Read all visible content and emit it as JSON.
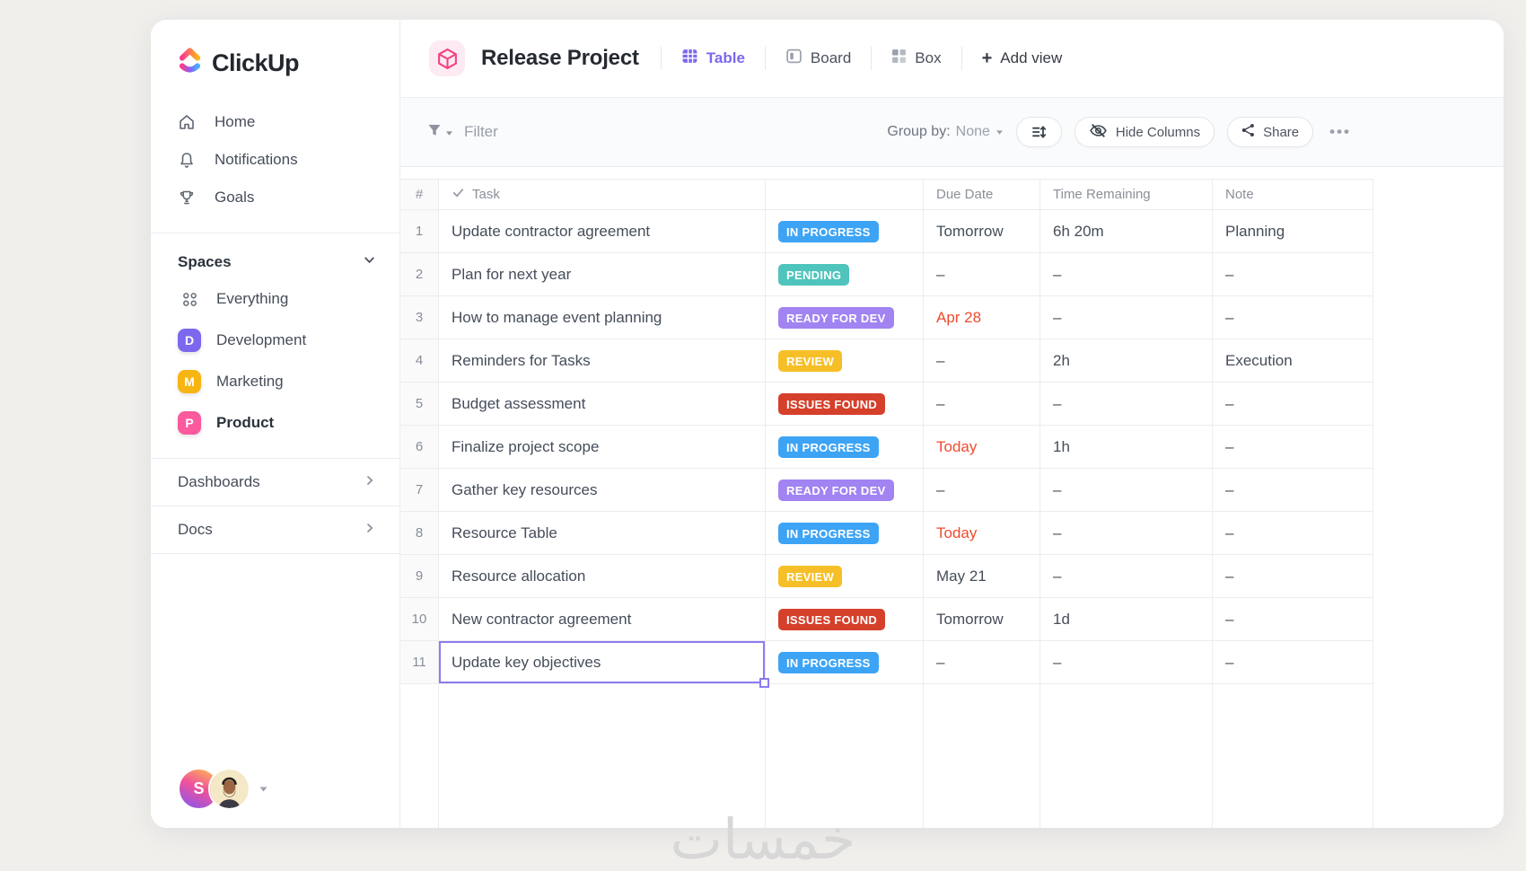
{
  "sidebar": {
    "logo_text": "ClickUp",
    "nav": [
      {
        "label": "Home",
        "icon": "home"
      },
      {
        "label": "Notifications",
        "icon": "bell"
      },
      {
        "label": "Goals",
        "icon": "trophy"
      }
    ],
    "spaces_header": "Spaces",
    "spaces": [
      {
        "label": "Everything",
        "icon": "grid"
      },
      {
        "label": "Development",
        "badge": "D",
        "badge_color": "#7b68ee"
      },
      {
        "label": "Marketing",
        "badge": "M",
        "badge_color": "#f7b511"
      },
      {
        "label": "Product",
        "badge": "P",
        "badge_color": "#fb5a9d",
        "active": true
      }
    ],
    "sections": [
      {
        "label": "Dashboards"
      },
      {
        "label": "Docs"
      }
    ],
    "user_initial": "S"
  },
  "header": {
    "project_title": "Release Project",
    "views": [
      {
        "label": "Table",
        "icon": "table",
        "active": true
      },
      {
        "label": "Board",
        "icon": "board",
        "active": false
      },
      {
        "label": "Box",
        "icon": "box",
        "active": false
      }
    ],
    "add_view_label": "Add view"
  },
  "toolbar": {
    "filter_label": "Filter",
    "group_by_label": "Group by:",
    "group_by_value": "None",
    "hide_columns_label": "Hide Columns",
    "share_label": "Share",
    "more_label": "•••"
  },
  "table": {
    "columns": {
      "num": "#",
      "task": "Task",
      "status": "",
      "due": "Due Date",
      "time": "Time Remaining",
      "note": "Note"
    },
    "rows": [
      {
        "num": "1",
        "task": "Update contractor agreement",
        "status": "IN PROGRESS",
        "due": "Tomorrow",
        "due_red": false,
        "time": "6h 20m",
        "note": "Planning"
      },
      {
        "num": "2",
        "task": "Plan for next year",
        "status": "PENDING",
        "due": "–",
        "due_red": false,
        "time": "–",
        "note": "–"
      },
      {
        "num": "3",
        "task": "How to manage event planning",
        "status": "READY FOR DEV",
        "due": "Apr 28",
        "due_red": true,
        "time": "–",
        "note": "–"
      },
      {
        "num": "4",
        "task": "Reminders for Tasks",
        "status": "REVIEW",
        "due": "–",
        "due_red": false,
        "time": "2h",
        "note": "Execution"
      },
      {
        "num": "5",
        "task": "Budget assessment",
        "status": "ISSUES FOUND",
        "due": "–",
        "due_red": false,
        "time": "–",
        "note": "–"
      },
      {
        "num": "6",
        "task": "Finalize project scope",
        "status": "IN PROGRESS",
        "due": "Today",
        "due_red": true,
        "time": "1h",
        "note": "–"
      },
      {
        "num": "7",
        "task": "Gather key resources",
        "status": "READY FOR DEV",
        "due": "–",
        "due_red": false,
        "time": "–",
        "note": "–"
      },
      {
        "num": "8",
        "task": "Resource Table",
        "status": "IN PROGRESS",
        "due": "Today",
        "due_red": true,
        "time": "–",
        "note": "–"
      },
      {
        "num": "9",
        "task": "Resource allocation",
        "status": "REVIEW",
        "due": "May 21",
        "due_red": false,
        "time": "–",
        "note": "–"
      },
      {
        "num": "10",
        "task": "New contractor agreement",
        "status": "ISSUES FOUND",
        "due": "Tomorrow",
        "due_red": false,
        "time": "1d",
        "note": "–"
      },
      {
        "num": "11",
        "task": "Update key objectives",
        "status": "IN PROGRESS",
        "due": "–",
        "due_red": false,
        "time": "–",
        "note": "–",
        "selected": true
      }
    ]
  },
  "colors": {
    "accent": "#7b68ee",
    "statuses": {
      "IN PROGRESS": "#3da4f5",
      "PENDING": "#4fc4bc",
      "READY FOR DEV": "#a183f2",
      "REVIEW": "#f6bf27",
      "ISSUES FOUND": "#d5402b"
    },
    "date_red": "#ee4b30",
    "selection": "#8a7cf0",
    "project_icon_pink": "#f1447e"
  },
  "watermark": "خمسات"
}
